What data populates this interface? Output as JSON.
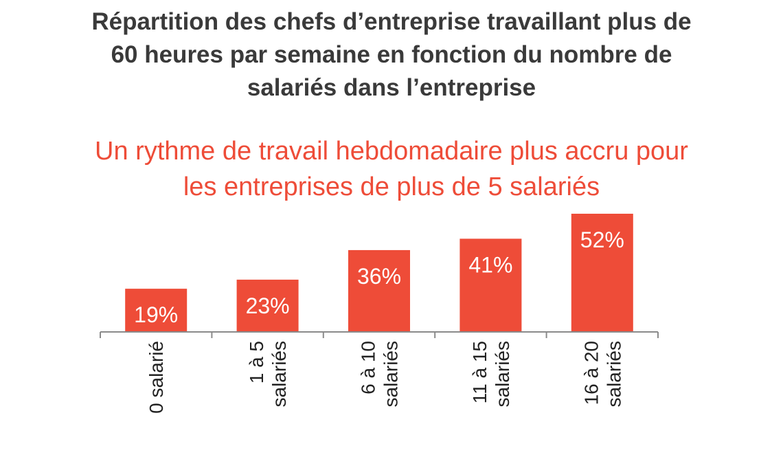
{
  "chart_title_lines": [
    "Répartition des chefs d’entreprise travaillant plus de",
    "60 heures par semaine en fonction du nombre de",
    "salariés dans l’entreprise"
  ],
  "chart_subtitle_lines": [
    "Un rythme de travail hebdomadaire plus accru pour",
    "les entreprises de plus de 5 salariés"
  ],
  "colors": {
    "bar": "#ee4c38",
    "title": "#3a3a3a",
    "subtitle": "#ee4c38",
    "axis": "#8a8a8a",
    "bar_label": "#ffffff",
    "tick_label": "#222222"
  },
  "chart_data": {
    "type": "bar",
    "title": "Répartition des chefs d’entreprise travaillant plus de 60 heures par semaine en fonction du nombre de salariés dans l’entreprise",
    "subtitle": "Un rythme de travail hebdomadaire plus accru pour les entreprises de plus de 5 salariés",
    "categories": [
      "0 salarié",
      "1 à 5 salariés",
      "6 à 10 salariés",
      "11 à 15 salariés",
      "16 à 20 salariés"
    ],
    "category_lines": [
      [
        "0 salarié"
      ],
      [
        "1 à 5",
        "salariés"
      ],
      [
        "6 à 10",
        "salariés"
      ],
      [
        "11 à 15",
        "salariés"
      ],
      [
        "16 à 20",
        "salariés"
      ]
    ],
    "values": [
      19,
      23,
      36,
      41,
      52
    ],
    "value_labels": [
      "19%",
      "23%",
      "36%",
      "41%",
      "52%"
    ],
    "unit": "%",
    "xlabel": "",
    "ylabel": "",
    "ylim": [
      0,
      52
    ],
    "grid": false,
    "legend": "none",
    "data_labels": "inside-bar"
  }
}
